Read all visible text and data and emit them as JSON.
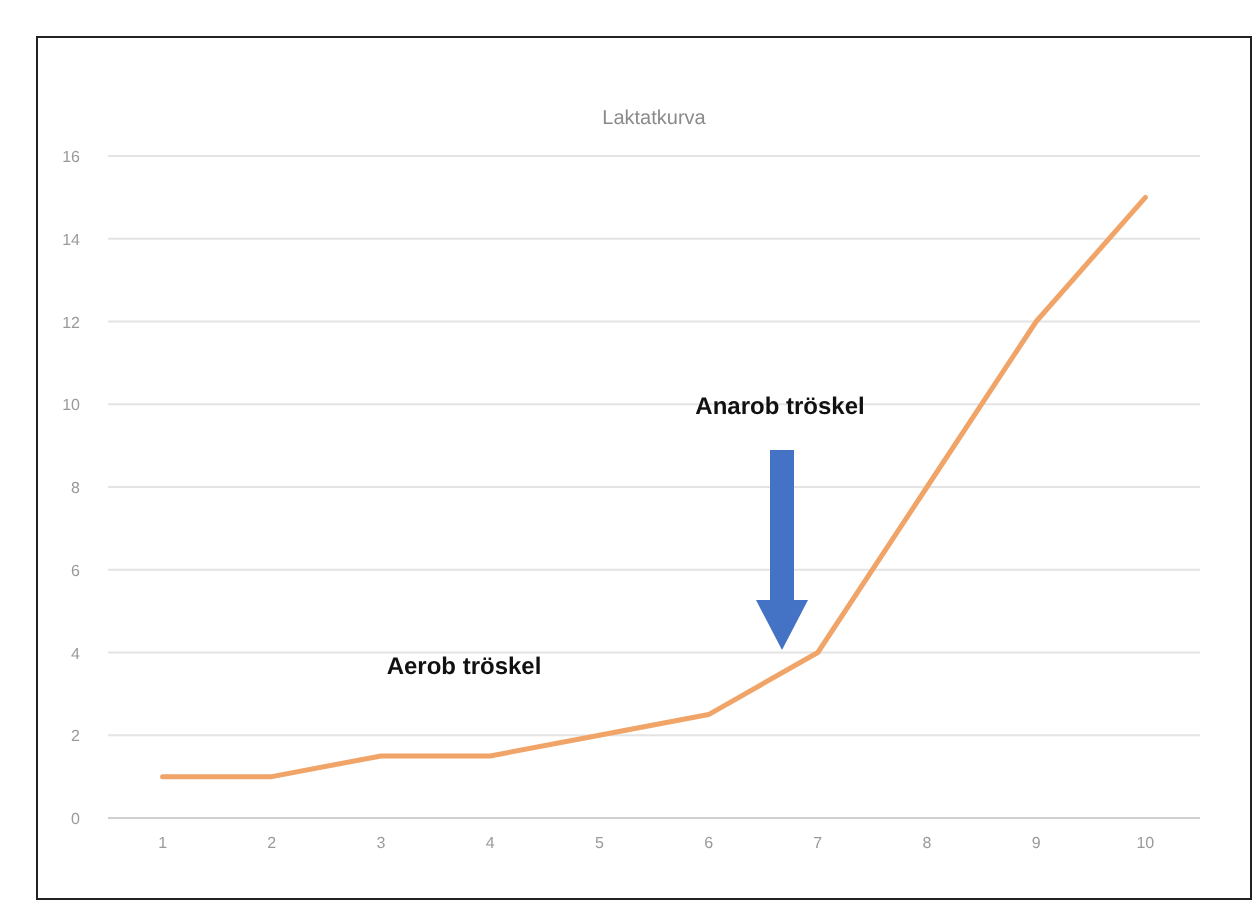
{
  "chart_data": {
    "type": "line",
    "title": "Laktatkurva",
    "categories": [
      "1",
      "2",
      "3",
      "4",
      "5",
      "6",
      "7",
      "8",
      "9",
      "10"
    ],
    "series": [
      {
        "color": "#f0a468",
        "values": [
          1,
          1,
          1.5,
          1.5,
          2,
          2.5,
          4,
          8,
          12,
          15
        ]
      }
    ],
    "ylim": [
      0,
      16
    ],
    "yticks": [
      0,
      2,
      4,
      6,
      8,
      10,
      12,
      14,
      16
    ],
    "grid": "y",
    "annotations": [
      "Anarob tröskel",
      "Aerob tröskel"
    ]
  }
}
